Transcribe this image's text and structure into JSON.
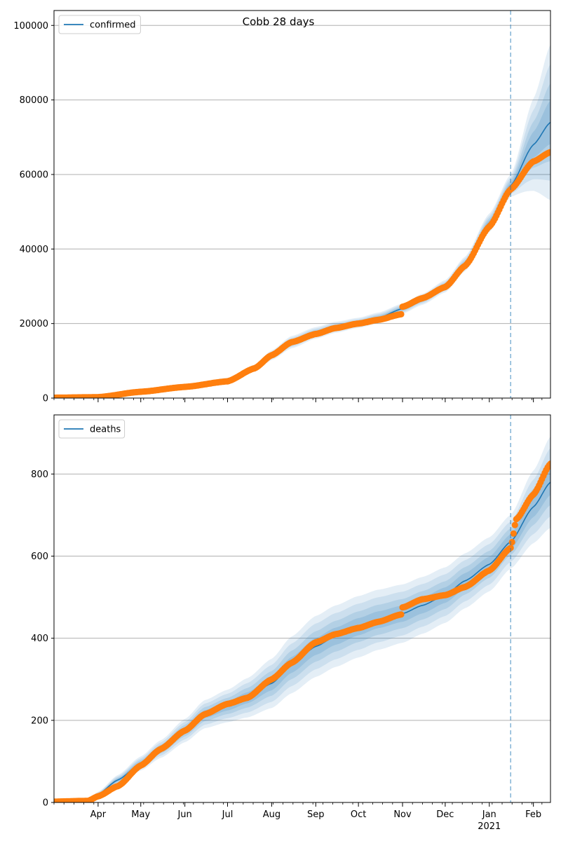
{
  "figure": {
    "title": "Cobb 28 days",
    "colors": {
      "model": "#1f77b4",
      "observed": "#ff7f0e",
      "band": "#1f77b4",
      "grid": "#b0b0b0",
      "forecast_line": "#1f77b4"
    }
  },
  "chart_data": [
    {
      "type": "line",
      "title": "Cobb 28 days",
      "legend": "confirmed",
      "legend_position": "top-left",
      "grid": "horizontal",
      "x_range": [
        "2020-03-01",
        "2021-02-13"
      ],
      "x_ticks": [
        {
          "date": "2020-04-01",
          "label": "Apr",
          "sub": ""
        },
        {
          "date": "2020-05-01",
          "label": "May",
          "sub": ""
        },
        {
          "date": "2020-06-01",
          "label": "Jun",
          "sub": ""
        },
        {
          "date": "2020-07-01",
          "label": "Jul",
          "sub": ""
        },
        {
          "date": "2020-08-01",
          "label": "Aug",
          "sub": ""
        },
        {
          "date": "2020-09-01",
          "label": "Sep",
          "sub": ""
        },
        {
          "date": "2020-10-01",
          "label": "Oct",
          "sub": ""
        },
        {
          "date": "2020-11-01",
          "label": "Nov",
          "sub": ""
        },
        {
          "date": "2020-12-01",
          "label": "Dec",
          "sub": ""
        },
        {
          "date": "2021-01-01",
          "label": "Jan",
          "sub": "2021"
        },
        {
          "date": "2021-02-01",
          "label": "Feb",
          "sub": ""
        }
      ],
      "show_x_labels": false,
      "ylim": [
        0,
        104000
      ],
      "y_ticks": [
        0,
        20000,
        40000,
        60000,
        80000,
        100000
      ],
      "forecast_start": "2021-01-16",
      "model": {
        "x": [
          "2020-03-01",
          "2020-04-01",
          "2020-05-01",
          "2020-06-01",
          "2020-07-01",
          "2020-07-20",
          "2020-08-01",
          "2020-08-15",
          "2020-09-01",
          "2020-09-15",
          "2020-10-01",
          "2020-10-15",
          "2020-11-01",
          "2020-11-15",
          "2020-12-01",
          "2020-12-15",
          "2021-01-01",
          "2021-01-16",
          "2021-02-01",
          "2021-02-13"
        ],
        "y": [
          0,
          300,
          1600,
          3200,
          4800,
          8000,
          11500,
          15000,
          17500,
          19000,
          20200,
          21500,
          24000,
          26500,
          30000,
          36000,
          47000,
          57000,
          68000,
          74000
        ],
        "band_rel": [
          0.05,
          0.06,
          0.08,
          0.1,
          0.1,
          0.1,
          0.1,
          0.1,
          0.08,
          0.07,
          0.06,
          0.06,
          0.05,
          0.05,
          0.05,
          0.05,
          0.05,
          0.05,
          0.18,
          0.28
        ]
      },
      "observed": {
        "x": [
          "2020-03-01",
          "2020-04-01",
          "2020-05-01",
          "2020-06-01",
          "2020-07-01",
          "2020-07-20",
          "2020-08-01",
          "2020-08-15",
          "2020-09-01",
          "2020-09-15",
          "2020-10-01",
          "2020-10-15",
          "2020-10-31",
          "2020-11-01",
          "2020-11-15",
          "2020-12-01",
          "2020-12-15",
          "2021-01-01",
          "2021-01-16",
          "2021-02-01",
          "2021-02-13"
        ],
        "y": [
          100,
          250,
          1700,
          3000,
          4500,
          8000,
          11500,
          15000,
          17200,
          18800,
          20000,
          21000,
          22500,
          24500,
          26800,
          29800,
          35500,
          46000,
          56000,
          63500,
          66000
        ]
      }
    },
    {
      "type": "line",
      "title": "",
      "legend": "deaths",
      "legend_position": "top-left",
      "grid": "horizontal",
      "x_range": [
        "2020-03-01",
        "2021-02-13"
      ],
      "x_ticks": [
        {
          "date": "2020-04-01",
          "label": "Apr",
          "sub": ""
        },
        {
          "date": "2020-05-01",
          "label": "May",
          "sub": ""
        },
        {
          "date": "2020-06-01",
          "label": "Jun",
          "sub": ""
        },
        {
          "date": "2020-07-01",
          "label": "Jul",
          "sub": ""
        },
        {
          "date": "2020-08-01",
          "label": "Aug",
          "sub": ""
        },
        {
          "date": "2020-09-01",
          "label": "Sep",
          "sub": ""
        },
        {
          "date": "2020-10-01",
          "label": "Oct",
          "sub": ""
        },
        {
          "date": "2020-11-01",
          "label": "Nov",
          "sub": ""
        },
        {
          "date": "2020-12-01",
          "label": "Dec",
          "sub": ""
        },
        {
          "date": "2021-01-01",
          "label": "Jan",
          "sub": "2021"
        },
        {
          "date": "2021-02-01",
          "label": "Feb",
          "sub": ""
        }
      ],
      "show_x_labels": true,
      "ylim": [
        0,
        944
      ],
      "y_ticks": [
        0,
        200,
        400,
        600,
        800
      ],
      "forecast_start": "2021-01-16",
      "model": {
        "x": [
          "2020-03-01",
          "2020-03-25",
          "2020-04-01",
          "2020-04-15",
          "2020-05-01",
          "2020-05-15",
          "2020-06-01",
          "2020-06-15",
          "2020-07-01",
          "2020-07-15",
          "2020-08-01",
          "2020-08-15",
          "2020-09-01",
          "2020-09-15",
          "2020-10-01",
          "2020-10-15",
          "2020-11-01",
          "2020-11-15",
          "2020-12-01",
          "2020-12-15",
          "2021-01-01",
          "2021-01-16",
          "2021-02-01",
          "2021-02-13"
        ],
        "y": [
          0,
          5,
          20,
          55,
          95,
          130,
          175,
          215,
          235,
          255,
          290,
          335,
          380,
          405,
          428,
          445,
          460,
          480,
          505,
          540,
          580,
          635,
          720,
          780
        ],
        "band_rel": [
          0.2,
          0.2,
          0.2,
          0.18,
          0.16,
          0.15,
          0.15,
          0.15,
          0.16,
          0.18,
          0.2,
          0.2,
          0.19,
          0.18,
          0.17,
          0.16,
          0.15,
          0.14,
          0.13,
          0.12,
          0.11,
          0.1,
          0.12,
          0.14
        ]
      },
      "observed": {
        "x": [
          "2020-03-01",
          "2020-03-25",
          "2020-04-01",
          "2020-04-15",
          "2020-05-01",
          "2020-05-15",
          "2020-06-01",
          "2020-06-15",
          "2020-07-01",
          "2020-07-15",
          "2020-08-01",
          "2020-08-15",
          "2020-09-01",
          "2020-09-15",
          "2020-10-01",
          "2020-10-15",
          "2020-10-31",
          "2020-11-01",
          "2020-11-15",
          "2020-12-01",
          "2020-12-15",
          "2021-01-01",
          "2021-01-16",
          "2021-01-20",
          "2021-02-01",
          "2021-02-13"
        ],
        "y": [
          2,
          4,
          15,
          40,
          90,
          130,
          175,
          215,
          240,
          255,
          300,
          340,
          390,
          410,
          425,
          440,
          458,
          475,
          495,
          505,
          525,
          565,
          620,
          690,
          750,
          825
        ]
      }
    }
  ]
}
